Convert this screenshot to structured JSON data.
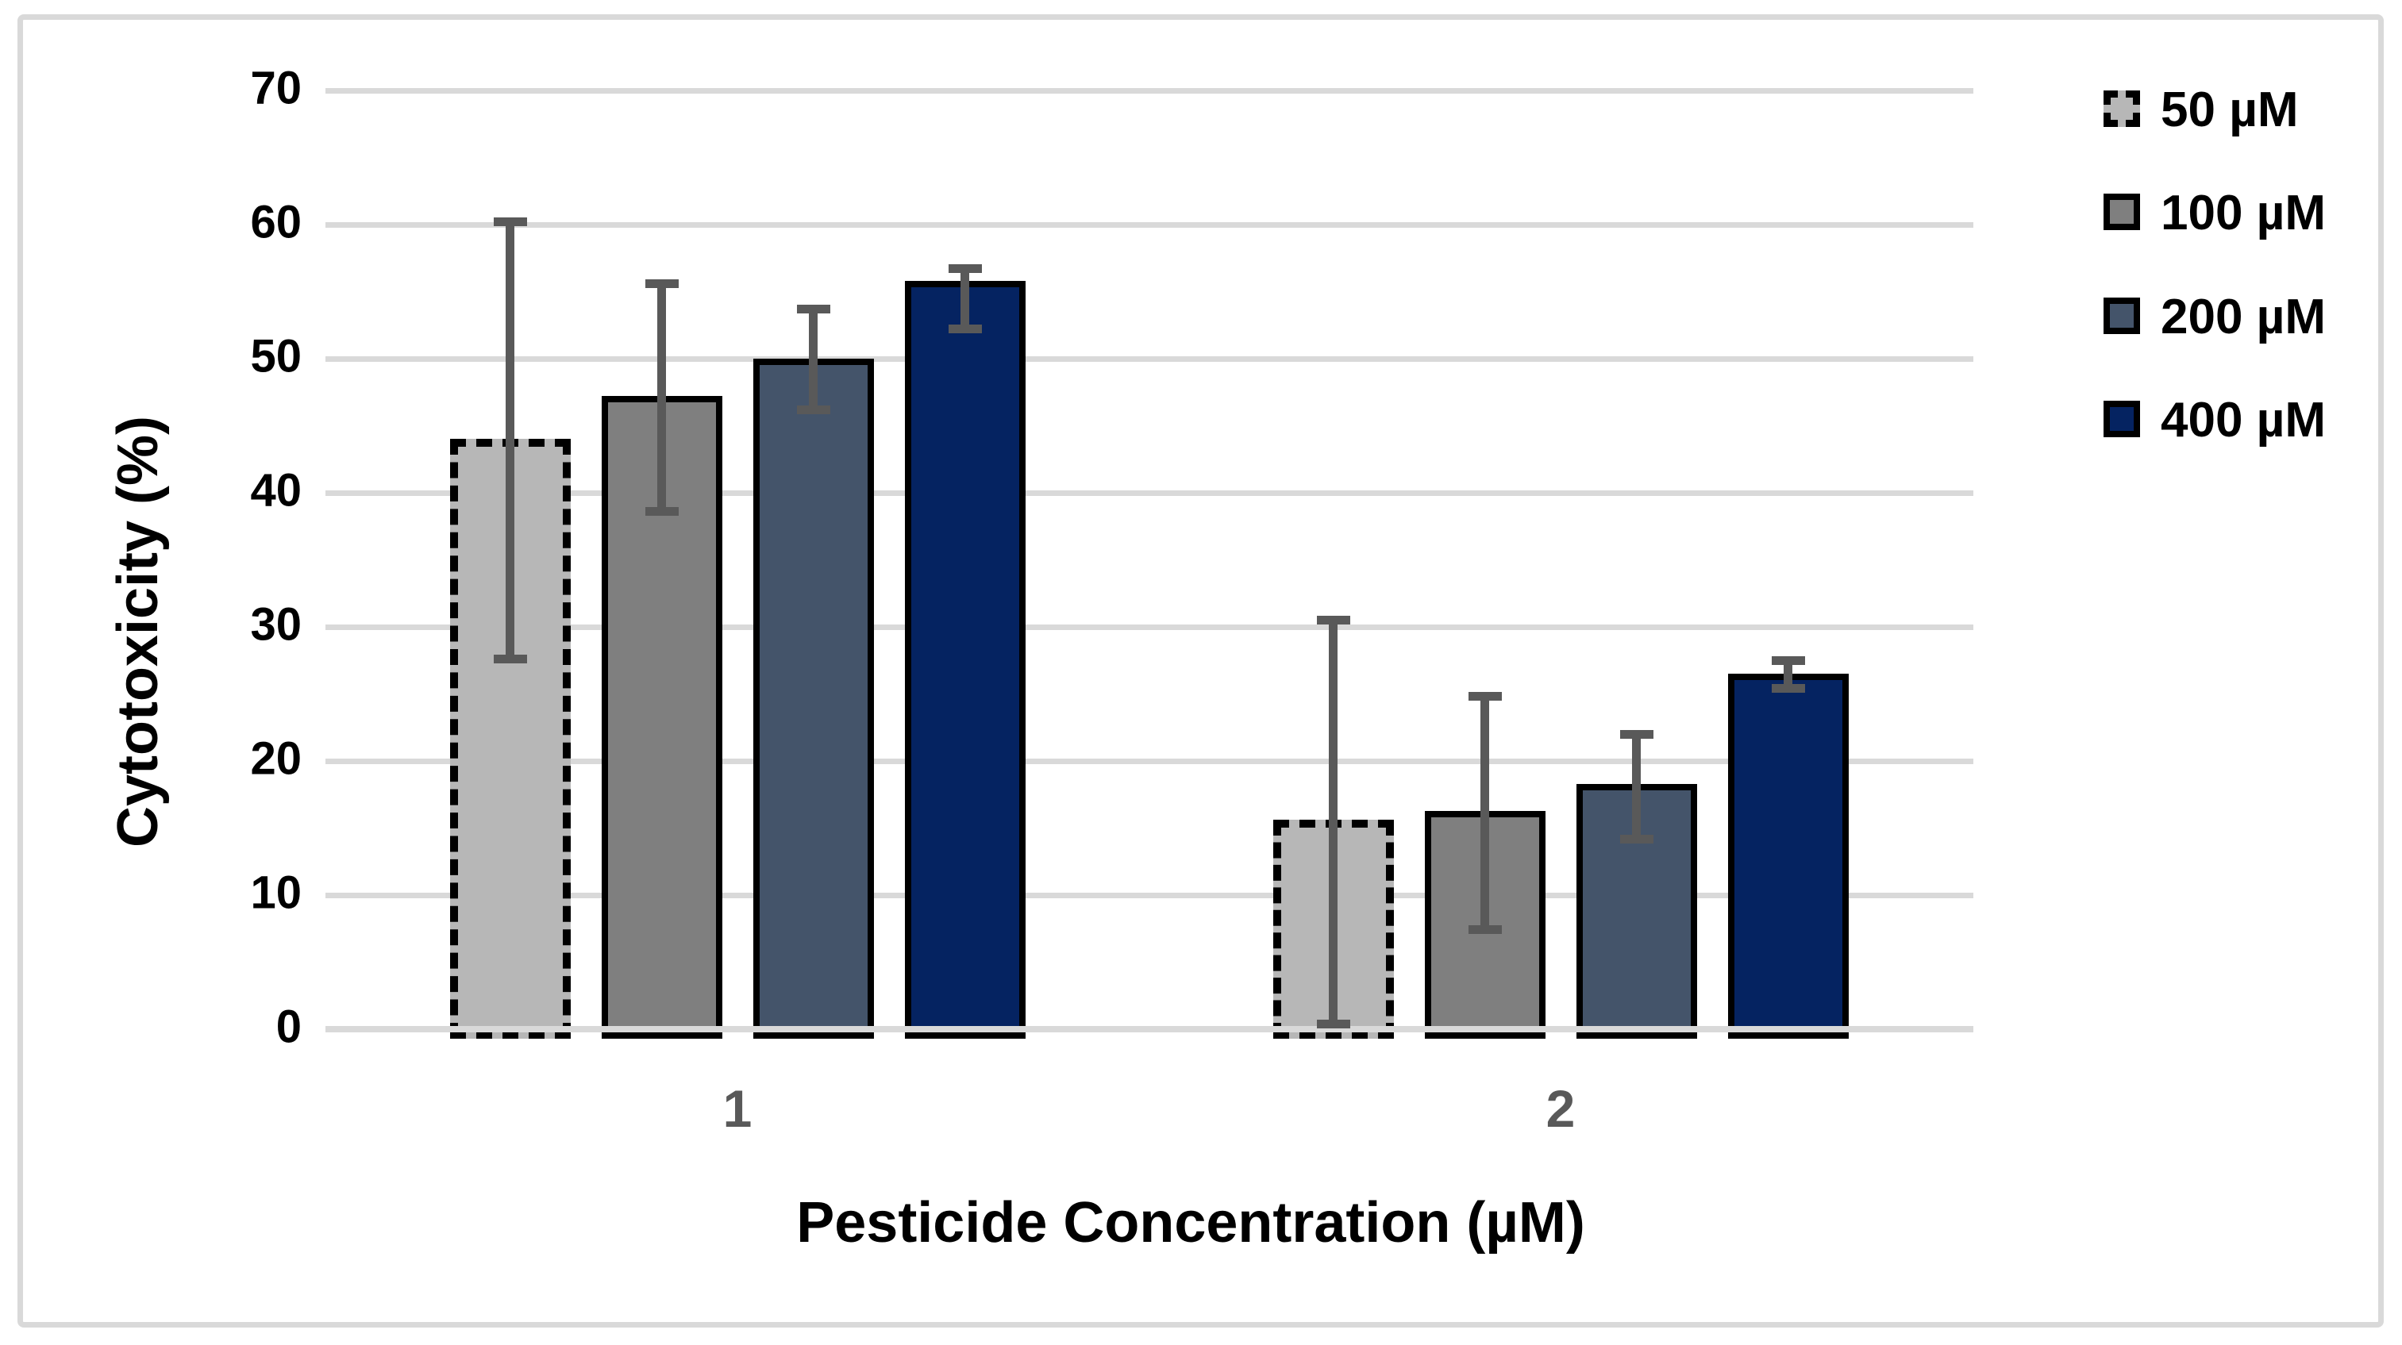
{
  "figure": {
    "background": "#ffffff",
    "frame_border_color": "#d9d9d9"
  },
  "chart_data": {
    "type": "bar",
    "title": "",
    "xlabel": "Pesticide Concentration (µM)",
    "ylabel": "Cytotoxicity (%)",
    "categories": [
      "1",
      "2"
    ],
    "ylim": [
      0,
      70
    ],
    "yticks": [
      0,
      10,
      20,
      30,
      40,
      50,
      60,
      70
    ],
    "grid": true,
    "legend_position": "right",
    "series": [
      {
        "name": "50 µM",
        "color": "#b7b7b7",
        "outline": "dashed",
        "values": [
          44.0,
          15.6
        ],
        "error_low": [
          27.6,
          0.4
        ],
        "error_high": [
          60.2,
          30.5
        ]
      },
      {
        "name": "100 µM",
        "color": "#7f7f7f",
        "outline": "solid",
        "values": [
          47.2,
          16.3
        ],
        "error_low": [
          38.6,
          7.4
        ],
        "error_high": [
          55.6,
          24.8
        ]
      },
      {
        "name": "200 µM",
        "color": "#44546a",
        "outline": "solid",
        "values": [
          50.0,
          18.3
        ],
        "error_low": [
          46.2,
          14.2
        ],
        "error_high": [
          53.7,
          22.0
        ]
      },
      {
        "name": "400 µM",
        "color": "#052361",
        "outline": "solid",
        "values": [
          55.8,
          26.5
        ],
        "error_low": [
          52.2,
          25.4
        ],
        "error_high": [
          56.7,
          27.5
        ]
      }
    ],
    "colors": {
      "gridline": "#d9d9d9",
      "axis_line": "#d9d9d9",
      "error_bar": "#595959",
      "tick_label": "#000000",
      "category_label": "#595959",
      "bar_outline": "#000000"
    }
  }
}
